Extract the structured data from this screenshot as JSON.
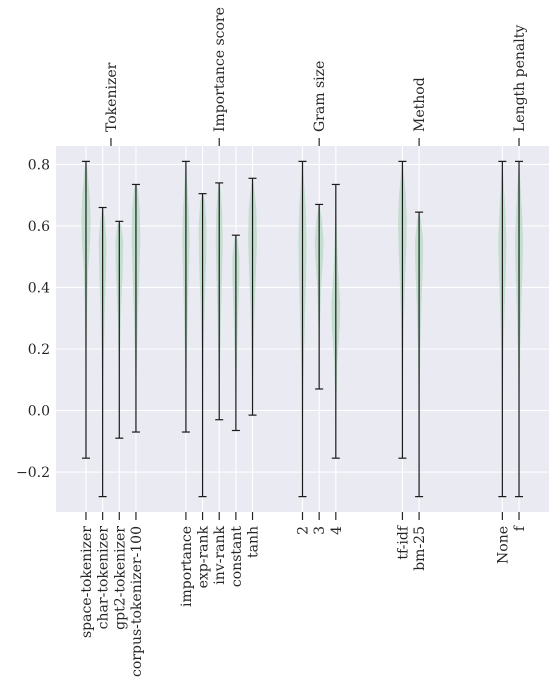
{
  "chart_data": {
    "type": "violin",
    "ylim": [
      -0.33,
      0.86
    ],
    "yticks": [
      -0.2,
      0.0,
      0.2,
      0.4,
      0.6,
      0.8
    ],
    "ytick_labels": [
      "−0.2",
      "0.0",
      "0.2",
      "0.4",
      "0.6",
      "0.8"
    ],
    "grid": true,
    "colors": {
      "background": "#eaeaf2",
      "violin_fill": "#a8d3b8",
      "violin_alpha": 0.6,
      "whisker": "#1a1a1a",
      "grid": "#ffffff",
      "text": "#262626"
    },
    "groups": [
      {
        "label": "Tokenizer",
        "x": 1.5
      },
      {
        "label": "Importance score",
        "x": 8.0
      },
      {
        "label": "Gram size",
        "x": 14.0
      },
      {
        "label": "Method",
        "x": 20.0
      },
      {
        "label": "Length penalty",
        "x": 26.0
      }
    ],
    "violins": [
      {
        "label": "space-tokenizer",
        "x": 0,
        "min": -0.155,
        "max": 0.81,
        "shape": [
          [
            -0.155,
            0.0
          ],
          [
            0.0,
            0.02
          ],
          [
            0.2,
            0.07
          ],
          [
            0.35,
            0.13
          ],
          [
            0.45,
            0.22
          ],
          [
            0.55,
            0.42
          ],
          [
            0.62,
            0.48
          ],
          [
            0.7,
            0.38
          ],
          [
            0.78,
            0.15
          ],
          [
            0.81,
            0.02
          ]
        ]
      },
      {
        "label": "char-tokenizer",
        "x": 1,
        "min": -0.28,
        "max": 0.66,
        "shape": [
          [
            -0.28,
            0.0
          ],
          [
            -0.1,
            0.02
          ],
          [
            0.1,
            0.07
          ],
          [
            0.3,
            0.2
          ],
          [
            0.45,
            0.35
          ],
          [
            0.55,
            0.4
          ],
          [
            0.62,
            0.25
          ],
          [
            0.66,
            0.02
          ]
        ]
      },
      {
        "label": "gpt2-tokenizer",
        "x": 2,
        "min": -0.09,
        "max": 0.615,
        "shape": [
          [
            -0.09,
            0.0
          ],
          [
            0.1,
            0.03
          ],
          [
            0.3,
            0.15
          ],
          [
            0.45,
            0.35
          ],
          [
            0.55,
            0.4
          ],
          [
            0.6,
            0.22
          ],
          [
            0.615,
            0.02
          ]
        ]
      },
      {
        "label": "corpus-tokenizer-100",
        "x": 3,
        "min": -0.07,
        "max": 0.735,
        "shape": [
          [
            -0.07,
            0.0
          ],
          [
            0.1,
            0.05
          ],
          [
            0.3,
            0.2
          ],
          [
            0.45,
            0.35
          ],
          [
            0.55,
            0.45
          ],
          [
            0.65,
            0.4
          ],
          [
            0.72,
            0.2
          ],
          [
            0.735,
            0.02
          ]
        ]
      },
      {
        "label": "importance",
        "x": 6,
        "min": -0.07,
        "max": 0.81,
        "shape": [
          [
            -0.07,
            0.0
          ],
          [
            0.1,
            0.05
          ],
          [
            0.3,
            0.18
          ],
          [
            0.45,
            0.3
          ],
          [
            0.55,
            0.38
          ],
          [
            0.65,
            0.3
          ],
          [
            0.75,
            0.12
          ],
          [
            0.81,
            0.02
          ]
        ]
      },
      {
        "label": "exp-rank",
        "x": 7,
        "min": -0.28,
        "max": 0.705,
        "shape": [
          [
            -0.28,
            0.0
          ],
          [
            0.0,
            0.03
          ],
          [
            0.2,
            0.1
          ],
          [
            0.35,
            0.22
          ],
          [
            0.5,
            0.38
          ],
          [
            0.6,
            0.4
          ],
          [
            0.68,
            0.25
          ],
          [
            0.705,
            0.02
          ]
        ]
      },
      {
        "label": "inv-rank",
        "x": 8,
        "min": -0.03,
        "max": 0.74,
        "shape": [
          [
            -0.03,
            0.0
          ],
          [
            0.1,
            0.05
          ],
          [
            0.3,
            0.18
          ],
          [
            0.45,
            0.3
          ],
          [
            0.55,
            0.36
          ],
          [
            0.65,
            0.3
          ],
          [
            0.72,
            0.14
          ],
          [
            0.74,
            0.02
          ]
        ]
      },
      {
        "label": "constant",
        "x": 9,
        "min": -0.065,
        "max": 0.57,
        "shape": [
          [
            -0.065,
            0.0
          ],
          [
            0.1,
            0.06
          ],
          [
            0.3,
            0.22
          ],
          [
            0.42,
            0.35
          ],
          [
            0.5,
            0.36
          ],
          [
            0.56,
            0.15
          ],
          [
            0.57,
            0.02
          ]
        ]
      },
      {
        "label": "tanh",
        "x": 10,
        "min": -0.015,
        "max": 0.755,
        "shape": [
          [
            -0.015,
            0.0
          ],
          [
            0.1,
            0.05
          ],
          [
            0.3,
            0.18
          ],
          [
            0.45,
            0.35
          ],
          [
            0.55,
            0.45
          ],
          [
            0.65,
            0.4
          ],
          [
            0.73,
            0.15
          ],
          [
            0.755,
            0.02
          ]
        ]
      },
      {
        "label": "2",
        "x": 13,
        "min": -0.28,
        "max": 0.81,
        "shape": [
          [
            -0.28,
            0.0
          ],
          [
            -0.1,
            0.03
          ],
          [
            0.1,
            0.1
          ],
          [
            0.3,
            0.25
          ],
          [
            0.45,
            0.38
          ],
          [
            0.55,
            0.42
          ],
          [
            0.65,
            0.35
          ],
          [
            0.75,
            0.15
          ],
          [
            0.81,
            0.02
          ]
        ]
      },
      {
        "label": "3",
        "x": 14,
        "min": 0.07,
        "max": 0.67,
        "shape": [
          [
            0.07,
            0.0
          ],
          [
            0.25,
            0.05
          ],
          [
            0.4,
            0.2
          ],
          [
            0.5,
            0.4
          ],
          [
            0.55,
            0.45
          ],
          [
            0.62,
            0.3
          ],
          [
            0.67,
            0.02
          ]
        ]
      },
      {
        "label": "4",
        "x": 15,
        "min": -0.155,
        "max": 0.735,
        "shape": [
          [
            -0.155,
            0.0
          ],
          [
            0.0,
            0.05
          ],
          [
            0.15,
            0.15
          ],
          [
            0.28,
            0.42
          ],
          [
            0.35,
            0.45
          ],
          [
            0.45,
            0.25
          ],
          [
            0.55,
            0.12
          ],
          [
            0.7,
            0.04
          ],
          [
            0.735,
            0.01
          ]
        ]
      },
      {
        "label": "tf-idf",
        "x": 19,
        "min": -0.155,
        "max": 0.81,
        "shape": [
          [
            -0.155,
            0.0
          ],
          [
            0.1,
            0.05
          ],
          [
            0.3,
            0.15
          ],
          [
            0.45,
            0.3
          ],
          [
            0.55,
            0.42
          ],
          [
            0.62,
            0.45
          ],
          [
            0.7,
            0.35
          ],
          [
            0.78,
            0.12
          ],
          [
            0.81,
            0.02
          ]
        ]
      },
      {
        "label": "bm-25",
        "x": 20,
        "min": -0.28,
        "max": 0.645,
        "shape": [
          [
            -0.28,
            0.0
          ],
          [
            0.0,
            0.04
          ],
          [
            0.2,
            0.12
          ],
          [
            0.35,
            0.25
          ],
          [
            0.48,
            0.4
          ],
          [
            0.55,
            0.42
          ],
          [
            0.62,
            0.2
          ],
          [
            0.645,
            0.02
          ]
        ]
      },
      {
        "label": "None",
        "x": 25,
        "min": -0.28,
        "max": 0.81,
        "shape": [
          [
            -0.28,
            0.0
          ],
          [
            0.0,
            0.04
          ],
          [
            0.2,
            0.12
          ],
          [
            0.35,
            0.25
          ],
          [
            0.48,
            0.38
          ],
          [
            0.55,
            0.42
          ],
          [
            0.65,
            0.3
          ],
          [
            0.75,
            0.12
          ],
          [
            0.81,
            0.02
          ]
        ]
      },
      {
        "label": "f",
        "x": 26,
        "min": -0.28,
        "max": 0.81,
        "shape": [
          [
            -0.28,
            0.0
          ],
          [
            0.0,
            0.04
          ],
          [
            0.2,
            0.12
          ],
          [
            0.35,
            0.25
          ],
          [
            0.48,
            0.38
          ],
          [
            0.55,
            0.42
          ],
          [
            0.65,
            0.3
          ],
          [
            0.75,
            0.12
          ],
          [
            0.81,
            0.02
          ]
        ]
      }
    ]
  }
}
